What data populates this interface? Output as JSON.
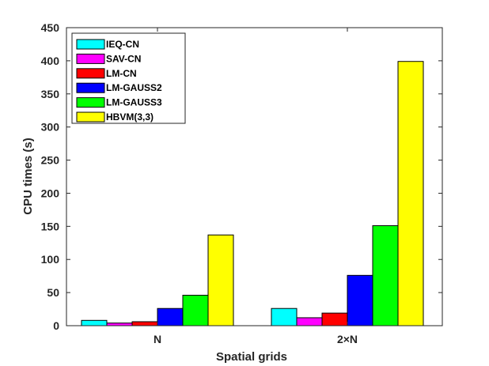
{
  "chart_data": {
    "type": "bar",
    "categories": [
      "N",
      "2×N"
    ],
    "series": [
      {
        "name": "IEQ-CN",
        "color": "#00FFFF",
        "values": [
          8,
          26
        ]
      },
      {
        "name": "SAV-CN",
        "color": "#FF00FF",
        "values": [
          4,
          12
        ]
      },
      {
        "name": "LM-CN",
        "color": "#FF0000",
        "values": [
          6,
          19
        ]
      },
      {
        "name": "LM-GAUSS2",
        "color": "#0000FF",
        "values": [
          26,
          76
        ]
      },
      {
        "name": "LM-GAUSS3",
        "color": "#00FF00",
        "values": [
          46,
          151
        ]
      },
      {
        "name": "HBVM(3,3)",
        "color": "#FFFF00",
        "values": [
          137,
          399
        ]
      }
    ],
    "xlabel": "Spatial grids",
    "ylabel": "CPU times (s)",
    "ylim": [
      0,
      450
    ],
    "yticks": [
      0,
      50,
      100,
      150,
      200,
      250,
      300,
      350,
      400,
      450
    ],
    "grid": false,
    "legend_position": "top-left"
  }
}
